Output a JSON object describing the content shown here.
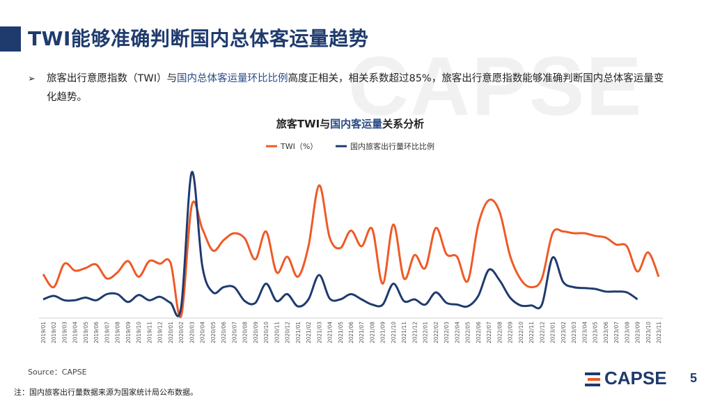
{
  "header": {
    "title": "TWI能够准确判断国内总体客运量趋势",
    "watermark": "CAPSE"
  },
  "bullet": {
    "marker": "➢",
    "text_before": "旅客出行意愿指数（TWI）与",
    "text_highlight": "国内总体客运量环比比例",
    "text_after": "高度正相关，相关系数超过85%，旅客出行意愿指数能够准确判断国内总体客运量变化趋势。"
  },
  "chart_data": {
    "type": "line",
    "title_parts": [
      "旅客TWI与",
      "国内客运量",
      "关系分析"
    ],
    "legend": {
      "position": "top-center"
    },
    "x": [
      "2019/01",
      "2019/02",
      "2019/03",
      "2019/04",
      "2019/05",
      "2019/06",
      "2019/07",
      "2019/08",
      "2019/09",
      "2019/10",
      "2019/11",
      "2019/12",
      "2020/01",
      "2020/02",
      "2020/03",
      "2020/04",
      "2020/05",
      "2020/06",
      "2020/07",
      "2020/08",
      "2020/09",
      "2020/10",
      "2020/11",
      "2020/12",
      "2021/01",
      "2021/02",
      "2021/03",
      "2021/04",
      "2021/05",
      "2021/06",
      "2021/07",
      "2021/08",
      "2021/09",
      "2021/10",
      "2021/11",
      "2021/12",
      "2022/01",
      "2022/02",
      "2022/03",
      "2022/04",
      "2022/05",
      "2022/06",
      "2022/07",
      "2022/08",
      "2022/09",
      "2022/10",
      "2022/11",
      "2022/12",
      "2023/01",
      "2023/02",
      "2023/03",
      "2023/04",
      "2023/05",
      "2023/06",
      "2023/07",
      "2023/08",
      "2023/09",
      "2023/10",
      "2023/11"
    ],
    "series": [
      {
        "name": "TWI（%）",
        "color": "#ef5a26",
        "values": [
          43,
          28,
          55,
          47,
          50,
          54,
          38,
          45,
          58,
          40,
          58,
          55,
          56,
          -5,
          122,
          95,
          70,
          82,
          90,
          84,
          60,
          92,
          45,
          63,
          40,
          75,
          145,
          85,
          73,
          93,
          75,
          95,
          32,
          100,
          38,
          65,
          50,
          96,
          66,
          63,
          35,
          100,
          128,
          115,
          64,
          37,
          28,
          38,
          90,
          92,
          90,
          90,
          87,
          85,
          77,
          75,
          46,
          68,
          40
        ]
      },
      {
        "name": "国内旅客出行量环比比例",
        "color": "#1f3b6e",
        "values": [
          14,
          18,
          13,
          13,
          16,
          13,
          20,
          20,
          11,
          19,
          13,
          17,
          10,
          5,
          160,
          52,
          22,
          28,
          28,
          12,
          10,
          32,
          12,
          20,
          6,
          14,
          42,
          15,
          14,
          20,
          14,
          8,
          8,
          32,
          12,
          14,
          8,
          22,
          10,
          8,
          6,
          18,
          48,
          36,
          16,
          7,
          7,
          8,
          62,
          34,
          28,
          27,
          26,
          23,
          23,
          22,
          14,
          null,
          null
        ]
      }
    ],
    "y_hidden": true
  },
  "footer": {
    "source": "Source：CAPSE",
    "note": "注：国内旅客出行量数据来源为国家统计局公布数据。",
    "logo_text": "CAPSE",
    "page_number": "5"
  },
  "colors": {
    "brand": "#1f3b6e",
    "accent": "#ef5a26"
  }
}
